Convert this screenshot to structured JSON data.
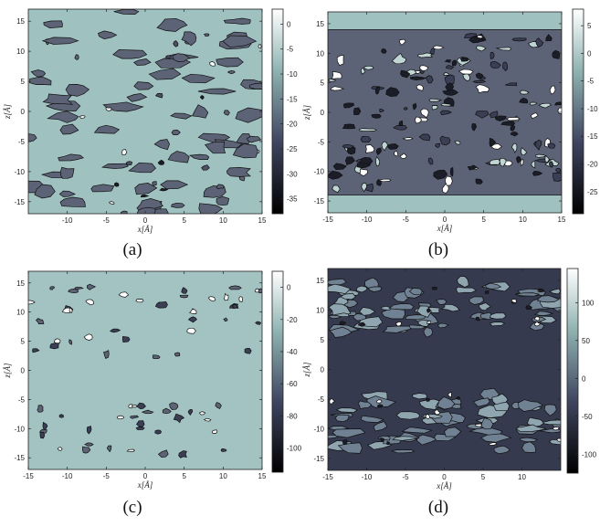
{
  "chart_data": [
    {
      "type": "heatmap",
      "caption": "(a)",
      "xlabel": "x[Å]",
      "ylabel": "z[Å]",
      "xlim": [
        -15,
        15
      ],
      "ylim": [
        -17,
        17
      ],
      "xticks": [
        "-10",
        "-5",
        "0",
        "5",
        "10",
        "15"
      ],
      "yticks": [
        "15",
        "10",
        "5",
        "0",
        "-5",
        "-10",
        "-15"
      ],
      "colorbar": {
        "range": [
          -38,
          3
        ],
        "ticks": [
          "0",
          "-5",
          "-10",
          "-15",
          "-20",
          "-25",
          "-30",
          "-35"
        ]
      },
      "background_color": "#9fc2c0",
      "pattern": "uniform"
    },
    {
      "type": "heatmap",
      "caption": "(b)",
      "xlabel": "x[Å]",
      "ylabel": "z[Å]",
      "xlim": [
        -15,
        15
      ],
      "ylim": [
        -17,
        17
      ],
      "xticks": [
        "-15",
        "-10",
        "-5",
        "0",
        "5",
        "10",
        "15"
      ],
      "yticks": [
        "15",
        "10",
        "5",
        "0",
        "-5",
        "-10",
        "-15"
      ],
      "colorbar": {
        "range": [
          -29,
          8
        ],
        "ticks": [
          "5",
          "0",
          "-5",
          "-10",
          "-15",
          "-20",
          "-25"
        ]
      },
      "background_color": "#9fc2c0",
      "pattern": "band"
    },
    {
      "type": "heatmap",
      "caption": "(c)",
      "xlabel": "x[Å]",
      "ylabel": "z[Å]",
      "xlim": [
        -15,
        15
      ],
      "ylim": [
        -17,
        17
      ],
      "xticks": [
        "-15",
        "-10",
        "-5",
        "0",
        "5",
        "10",
        "15"
      ],
      "yticks": [
        "15",
        "10",
        "5",
        "0",
        "-5",
        "-10",
        "-15"
      ],
      "colorbar": {
        "range": [
          -115,
          10
        ],
        "ticks": [
          "0",
          "-20",
          "-40",
          "-60",
          "-80",
          "-100"
        ]
      },
      "background_color": "#a2c3c1",
      "pattern": "edges"
    },
    {
      "type": "heatmap",
      "caption": "(d)",
      "xlabel": "x[Å]",
      "ylabel": "z[Å]",
      "xlim": [
        -15,
        15
      ],
      "ylim": [
        -17,
        17
      ],
      "xticks": [
        "-15",
        "-10",
        "-5",
        "0",
        "5",
        "10"
      ],
      "yticks": [
        "15",
        "10",
        "5",
        "0",
        "-5",
        "-10",
        "-15"
      ],
      "colorbar": {
        "range": [
          -125,
          145
        ],
        "ticks": [
          "100",
          "50",
          "0",
          "-50",
          "-100"
        ]
      },
      "background_color": "#353a4e",
      "pattern": "inverse"
    }
  ]
}
